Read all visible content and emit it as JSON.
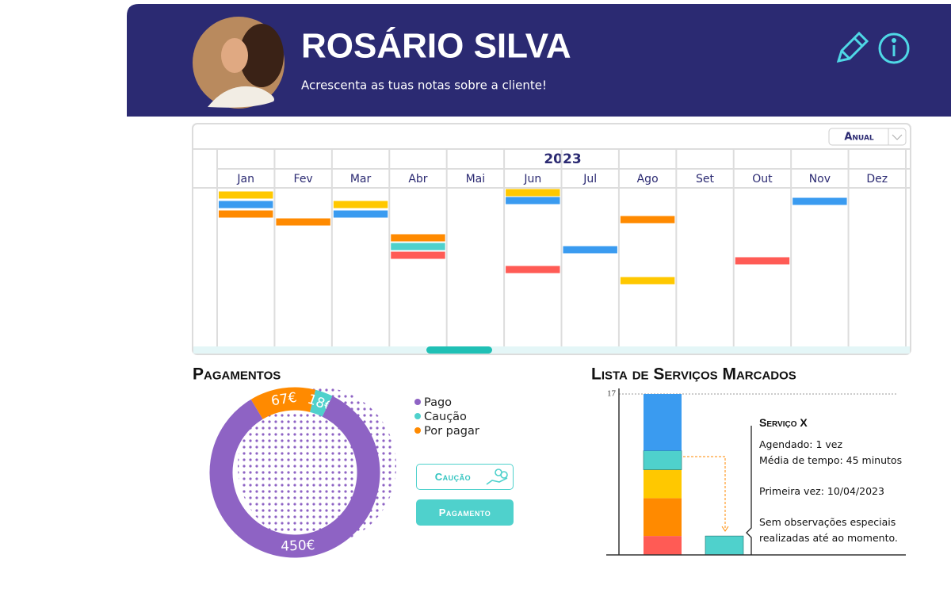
{
  "header": {
    "name": "ROSÁRIO SILVA",
    "subtitle": "Acrescenta as tuas notas sobre a cliente!"
  },
  "calendar": {
    "view": "Anual",
    "year": "2023",
    "months": [
      "Jan",
      "Fev",
      "Mar",
      "Abr",
      "Mai",
      "Jun",
      "Jul",
      "Ago",
      "Set",
      "Out",
      "Nov",
      "Dez"
    ]
  },
  "chart_data": [
    {
      "type": "donut",
      "title": "Pagamentos",
      "categories": [
        "Pago",
        "Caução",
        "Por pagar"
      ],
      "values": [
        450,
        18,
        67
      ],
      "value_labels": [
        "450€",
        "18€",
        "67€"
      ],
      "colors": [
        "#8e63c4",
        "#4fd1cc",
        "#ff8a00"
      ]
    },
    {
      "type": "bar",
      "stacked": true,
      "title": "Lista de Serviços Marcados",
      "categories": [
        null,
        null
      ],
      "series": [
        {
          "color": "#ff5b55",
          "values": [
            2,
            null
          ]
        },
        {
          "color": "#ff8a00",
          "values": [
            4,
            null
          ]
        },
        {
          "color": "#ffc800",
          "values": [
            3,
            null
          ]
        },
        {
          "color": "#4fd1cc",
          "values": [
            2,
            2
          ]
        },
        {
          "color": "#3a9bf0",
          "values": [
            6,
            null
          ]
        }
      ],
      "ylim": [
        0,
        17
      ],
      "yticks": [
        17
      ],
      "grid": true
    }
  ],
  "buttons": [
    "Caução",
    "Pagamento"
  ],
  "service": {
    "title": "Serviço X",
    "lines": [
      "Agendado: 1 vez",
      "Média de tempo: 45 minutos",
      "Primeira vez: 10/04/2023",
      "Sem observações especiais realizadas até ao momento."
    ]
  }
}
